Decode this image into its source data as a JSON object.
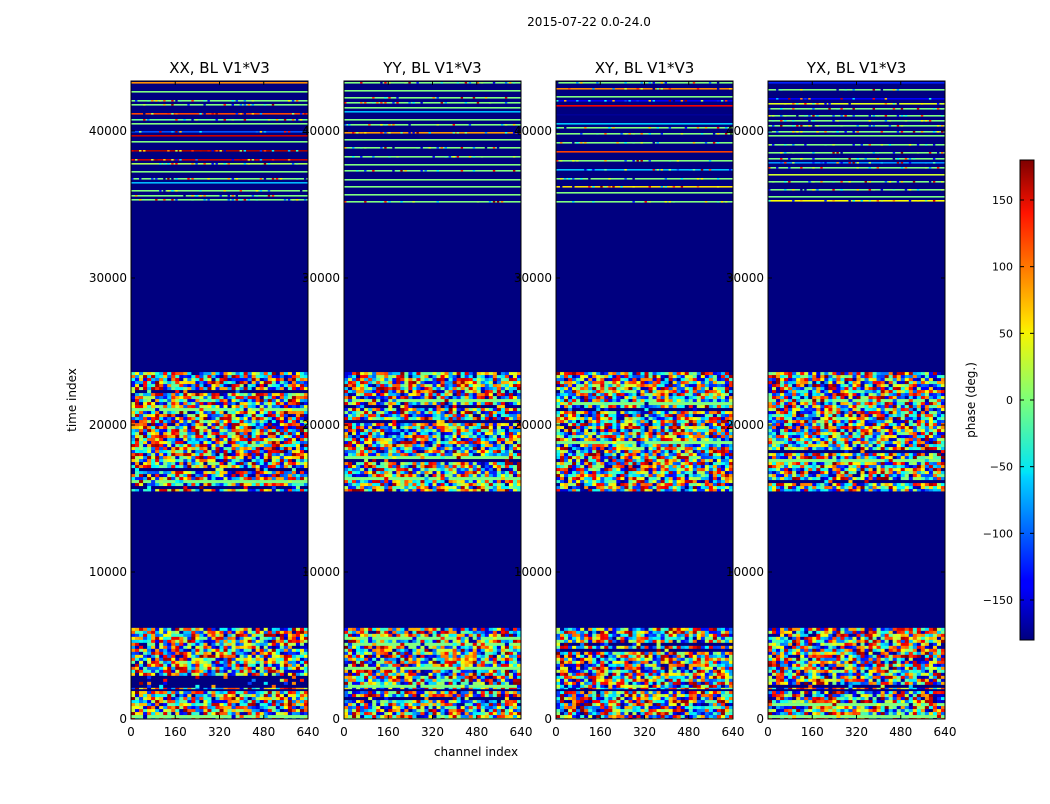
{
  "figure": {
    "suptitle": "2015-07-22 0.0-24.0"
  },
  "chart_data": {
    "type": "heatmap",
    "colormap": "jet",
    "background_color": "#000080",
    "xlabel": "channel index",
    "ylabel": "time index",
    "xlim": [
      0,
      640
    ],
    "ylim": [
      0,
      43400
    ],
    "xticks": [
      "0",
      "160",
      "320",
      "480",
      "640"
    ],
    "yticks": [
      "0",
      "10000",
      "20000",
      "30000",
      "40000"
    ],
    "ytick_values": [
      0,
      10000,
      20000,
      30000,
      40000
    ],
    "panels": [
      {
        "title": "XX, BL V1*V3"
      },
      {
        "title": "YY, BL V1*V3"
      },
      {
        "title": "XY, BL V1*V3"
      },
      {
        "title": "YX, BL V1*V3"
      }
    ],
    "data_segments": [
      {
        "type": "noise",
        "from": 0,
        "to": 1900
      },
      {
        "type": "noise",
        "from": 2050,
        "to": 6200
      },
      {
        "type": "noise",
        "from": 15500,
        "to": 23600
      },
      {
        "type": "sparse",
        "from": 35000,
        "to": 43400
      }
    ],
    "colorbar": {
      "label": "phase (deg.)",
      "range": [
        -180,
        180
      ],
      "ticks": [
        "150",
        "100",
        "50",
        "0",
        "−50",
        "−100",
        "−150"
      ],
      "tick_values": [
        150,
        100,
        50,
        0,
        -50,
        -100,
        -150
      ]
    }
  }
}
